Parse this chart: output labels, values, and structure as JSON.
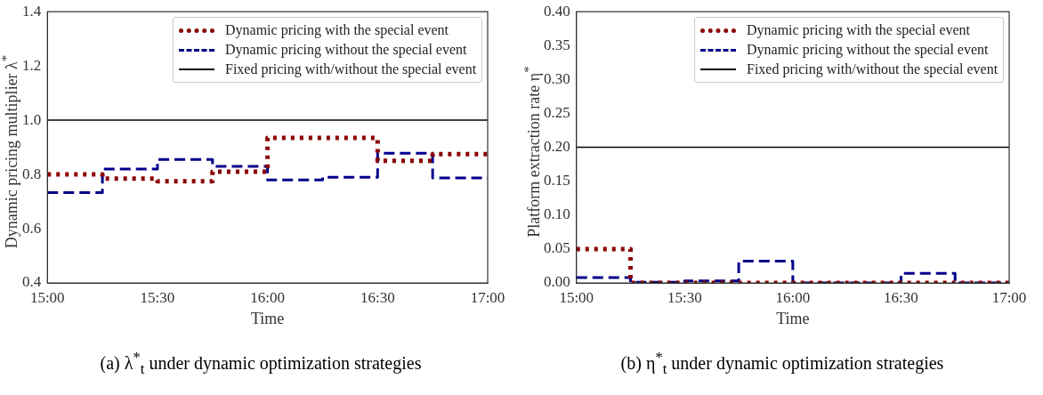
{
  "chart_data": [
    {
      "type": "step",
      "xlabel": "Time",
      "ylabel": "Dynamic pricing multiplier λ$^{*}$",
      "xlim": [
        15,
        17
      ],
      "xticks": [
        {
          "value": 15,
          "label": "15:00"
        },
        {
          "value": 15.5,
          "label": "15:30"
        },
        {
          "value": 16,
          "label": "16:00"
        },
        {
          "value": 16.5,
          "label": "16:30"
        },
        {
          "value": 17,
          "label": "17:00"
        }
      ],
      "ylim": [
        0.4,
        1.4
      ],
      "yticks": [
        0.4,
        0.6,
        0.8,
        {
          "value": 1,
          "label": "1.0"
        },
        1.2,
        1.4
      ],
      "legend": "top right",
      "marker": "none",
      "x": [
        15,
        15.25,
        15.5,
        15.75,
        16,
        16.25,
        16.5,
        16.75,
        17
      ],
      "series": [
        {
          "name": "Dynamic pricing with the special event",
          "color": "#8b0000",
          "line_style": "dotted",
          "values": [
            0.8,
            0.785,
            0.775,
            0.81,
            0.935,
            0.935,
            0.85,
            0.875,
            0.875
          ]
        },
        {
          "name": "Dynamic pricing without the special event",
          "color": "#00008b",
          "line_style": "dashed",
          "values": [
            0.733,
            0.82,
            0.855,
            0.83,
            0.78,
            0.79,
            0.878,
            0.787,
            0.787
          ]
        },
        {
          "name": "Fixed pricing with/without the special event",
          "color": "#000000",
          "line_style": "solid",
          "values": [
            1,
            1,
            1,
            1,
            1,
            1,
            1,
            1,
            1
          ]
        }
      ],
      "annotations": [
        "(a)  λ$^{*}$$_{t}$  under dynamic optimization strategies"
      ]
    },
    {
      "type": "step",
      "xlabel": "Time",
      "ylabel": "Platform extraction rate η$^{*}$",
      "xlim": [
        15,
        17
      ],
      "xticks": [
        {
          "value": 15,
          "label": "15:00"
        },
        {
          "value": 15.5,
          "label": "15:30"
        },
        {
          "value": 16,
          "label": "16:00"
        },
        {
          "value": 16.5,
          "label": "16:30"
        },
        {
          "value": 17,
          "label": "17:00"
        }
      ],
      "ylim": [
        0,
        0.4
      ],
      "yticks": [
        {
          "value": 0,
          "label": "0.00"
        },
        0.05,
        {
          "value": 0.1,
          "label": "0.10"
        },
        0.15,
        {
          "value": 0.2,
          "label": "0.20"
        },
        0.25,
        {
          "value": 0.3,
          "label": "0.30"
        },
        0.35,
        {
          "value": 0.4,
          "label": "0.40"
        }
      ],
      "legend": "top right",
      "marker": "none",
      "x": [
        15,
        15.25,
        15.5,
        15.75,
        16,
        16.25,
        16.5,
        16.75,
        17
      ],
      "series": [
        {
          "name": "Dynamic pricing with the special event",
          "color": "#8b0000",
          "line_style": "dotted",
          "values": [
            0.05,
            0,
            0,
            0,
            0,
            0,
            0,
            0,
            0
          ]
        },
        {
          "name": "Dynamic pricing without the special event",
          "color": "#00008b",
          "line_style": "dashed",
          "values": [
            0.008,
            0.001,
            0.003,
            0.032,
            0,
            0,
            0.014,
            0,
            0
          ]
        },
        {
          "name": "Fixed pricing with/without the special event",
          "color": "#000000",
          "line_style": "solid",
          "values": [
            0.2,
            0.2,
            0.2,
            0.2,
            0.2,
            0.2,
            0.2,
            0.2,
            0.2
          ]
        }
      ],
      "annotations": [
        "(b)  η$^{*}$$_{t}$  under dynamic optimization strategies"
      ]
    }
  ]
}
